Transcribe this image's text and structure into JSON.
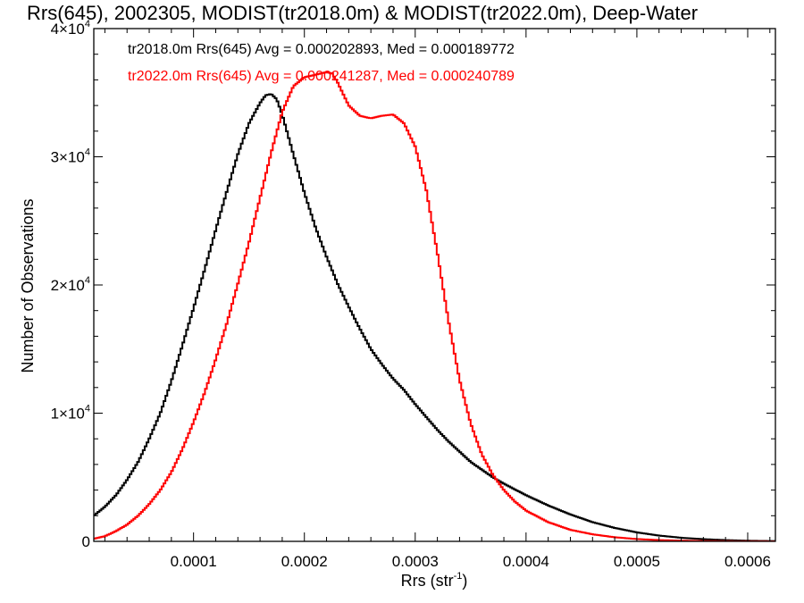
{
  "chart_data": {
    "type": "line",
    "title": "Rrs(645), 2002305, MODIST(tr2018.0m) & MODIST(tr2022.0m), Deep-Water",
    "xlabel": "Rrs (str",
    "xlabel_sup": "-1",
    "xlabel_end": ")",
    "ylabel": "Number of Observations",
    "xlim": [
      1e-05,
      0.000625
    ],
    "ylim": [
      0,
      40000
    ],
    "grid": false,
    "legend_position": "top-left",
    "x_ticks": [
      {
        "value": 0.0001,
        "label": "0.0001"
      },
      {
        "value": 0.0002,
        "label": "0.0002"
      },
      {
        "value": 0.0003,
        "label": "0.0003"
      },
      {
        "value": 0.0004,
        "label": "0.0004"
      },
      {
        "value": 0.0005,
        "label": "0.0005"
      },
      {
        "value": 0.0006,
        "label": "0.0006"
      }
    ],
    "y_ticks": [
      {
        "value": 0,
        "mant": "0",
        "exp": ""
      },
      {
        "value": 10000,
        "mant": "1×10",
        "exp": "4"
      },
      {
        "value": 20000,
        "mant": "2×10",
        "exp": "4"
      },
      {
        "value": 30000,
        "mant": "3×10",
        "exp": "4"
      },
      {
        "value": 40000,
        "mant": "4×10",
        "exp": "4"
      }
    ],
    "series": [
      {
        "name": "tr2018.0m Rrs(645) Avg = 0.000202893, Med = 0.000189772",
        "color": "#000000",
        "x": [
          1e-05,
          2e-05,
          3e-05,
          4e-05,
          5e-05,
          6e-05,
          7e-05,
          8e-05,
          9e-05,
          0.0001,
          0.00011,
          0.00012,
          0.00013,
          0.00014,
          0.00015,
          0.00016,
          0.000165,
          0.00017,
          0.000175,
          0.00018,
          0.00019,
          0.0002,
          0.00021,
          0.00022,
          0.00023,
          0.00024,
          0.00025,
          0.00026,
          0.00027,
          0.00028,
          0.00029,
          0.0003,
          0.00031,
          0.00032,
          0.00033,
          0.00034,
          0.00035,
          0.00036,
          0.00037,
          0.00038,
          0.0004,
          0.00042,
          0.00044,
          0.00046,
          0.00048,
          0.0005,
          0.00052,
          0.00054,
          0.00056,
          0.00058,
          0.0006,
          0.000625
        ],
        "y": [
          2000,
          2700,
          3600,
          4800,
          6200,
          8000,
          10000,
          12500,
          15300,
          18200,
          21200,
          24300,
          27300,
          30200,
          32600,
          34200,
          34800,
          34900,
          34500,
          33300,
          30200,
          27200,
          24500,
          22200,
          20100,
          18300,
          16600,
          15000,
          13800,
          12700,
          11800,
          10700,
          9700,
          8700,
          7800,
          7000,
          6200,
          5600,
          5000,
          4500,
          3600,
          2800,
          2100,
          1500,
          1050,
          700,
          450,
          280,
          170,
          100,
          50,
          20
        ]
      },
      {
        "name": "tr2022.0m Rrs(645) Avg = 0.000241287, Med = 0.000240789",
        "color": "#ff0000",
        "x": [
          1e-05,
          2e-05,
          3e-05,
          4e-05,
          5e-05,
          6e-05,
          7e-05,
          8e-05,
          9e-05,
          0.0001,
          0.00011,
          0.00012,
          0.00013,
          0.00014,
          0.00015,
          0.00016,
          0.00017,
          0.00018,
          0.00019,
          0.0002,
          0.00021,
          0.00022,
          0.000225,
          0.00023,
          0.00024,
          0.00025,
          0.00026,
          0.00027,
          0.00028,
          0.00029,
          0.0003,
          0.00031,
          0.00032,
          0.00033,
          0.00034,
          0.00035,
          0.00036,
          0.00037,
          0.00038,
          0.00039,
          0.0004,
          0.00042,
          0.00044,
          0.00046,
          0.00048,
          0.0005,
          0.00052,
          0.00054,
          0.00056,
          0.00058,
          0.0006,
          0.000625
        ],
        "y": [
          200,
          400,
          800,
          1300,
          2000,
          2900,
          4000,
          5400,
          7200,
          9300,
          11600,
          14200,
          17000,
          20100,
          23300,
          26800,
          30300,
          33500,
          35500,
          36200,
          36400,
          36600,
          36500,
          35800,
          34000,
          33200,
          33000,
          33200,
          33300,
          32600,
          30800,
          27400,
          22500,
          17200,
          12600,
          9200,
          6800,
          5200,
          4000,
          3100,
          2400,
          1500,
          900,
          550,
          320,
          180,
          100,
          55,
          30,
          15,
          8,
          3
        ]
      }
    ]
  }
}
